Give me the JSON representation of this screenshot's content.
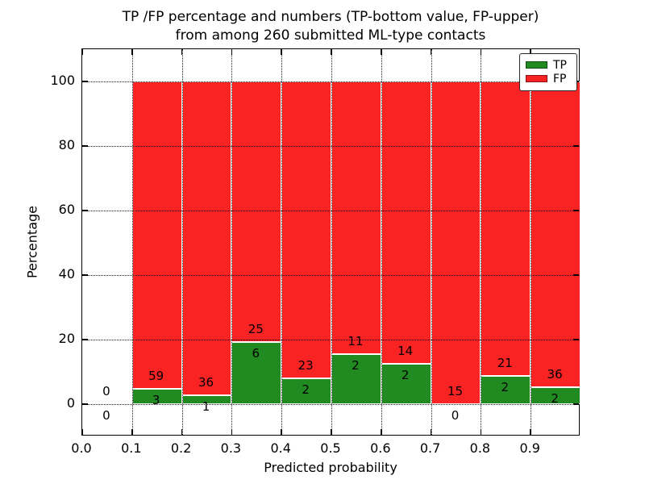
{
  "figure": {
    "title_line1": "TP /FP percentage and numbers (TP-bottom value, FP-upper)",
    "title_line2": "from among 260 submitted ML-type contacts"
  },
  "legend": {
    "position": "upper right",
    "items": [
      {
        "label": "TP",
        "color": "#218a21"
      },
      {
        "label": "FP",
        "color": "#fa2323"
      }
    ]
  },
  "chart_data": {
    "type": "bar",
    "stacked": true,
    "title": "TP /FP percentage and numbers (TP-bottom value, FP-upper) from among 260 submitted ML-type contacts",
    "xlabel": "Predicted probability",
    "ylabel": "Percentage",
    "xlim": [
      0.0,
      1.0
    ],
    "ylim": [
      -10,
      110
    ],
    "xticks": [
      "0.0",
      "0.1",
      "0.2",
      "0.3",
      "0.4",
      "0.5",
      "0.6",
      "0.7",
      "0.8",
      "0.9"
    ],
    "yticks": [
      0,
      20,
      40,
      60,
      80,
      100
    ],
    "grid": "dotted black, drawn above bars",
    "legend_position": "upper right",
    "total_contacts": 260,
    "bin_width": 0.1,
    "series": [
      {
        "name": "TP",
        "color": "#218a21"
      },
      {
        "name": "FP",
        "color": "#fa2323"
      }
    ],
    "bins": [
      {
        "start": 0.0,
        "tp": 0,
        "fp": 0,
        "tp_pct": 0.0,
        "fp_pct": 0.0,
        "has_bar": false
      },
      {
        "start": 0.1,
        "tp": 3,
        "fp": 59,
        "tp_pct": 4.84,
        "fp_pct": 95.16,
        "has_bar": true
      },
      {
        "start": 0.2,
        "tp": 1,
        "fp": 36,
        "tp_pct": 2.7,
        "fp_pct": 97.3,
        "has_bar": true
      },
      {
        "start": 0.3,
        "tp": 6,
        "fp": 25,
        "tp_pct": 19.35,
        "fp_pct": 80.65,
        "has_bar": true
      },
      {
        "start": 0.4,
        "tp": 2,
        "fp": 23,
        "tp_pct": 8.0,
        "fp_pct": 92.0,
        "has_bar": true
      },
      {
        "start": 0.5,
        "tp": 2,
        "fp": 11,
        "tp_pct": 15.38,
        "fp_pct": 84.62,
        "has_bar": true
      },
      {
        "start": 0.6,
        "tp": 2,
        "fp": 14,
        "tp_pct": 12.5,
        "fp_pct": 87.5,
        "has_bar": true
      },
      {
        "start": 0.7,
        "tp": 0,
        "fp": 15,
        "tp_pct": 0.0,
        "fp_pct": 100.0,
        "has_bar": true
      },
      {
        "start": 0.8,
        "tp": 2,
        "fp": 21,
        "tp_pct": 8.7,
        "fp_pct": 91.3,
        "has_bar": true
      },
      {
        "start": 0.9,
        "tp": 2,
        "fp": 36,
        "tp_pct": 5.26,
        "fp_pct": 94.74,
        "has_bar": true
      }
    ]
  }
}
